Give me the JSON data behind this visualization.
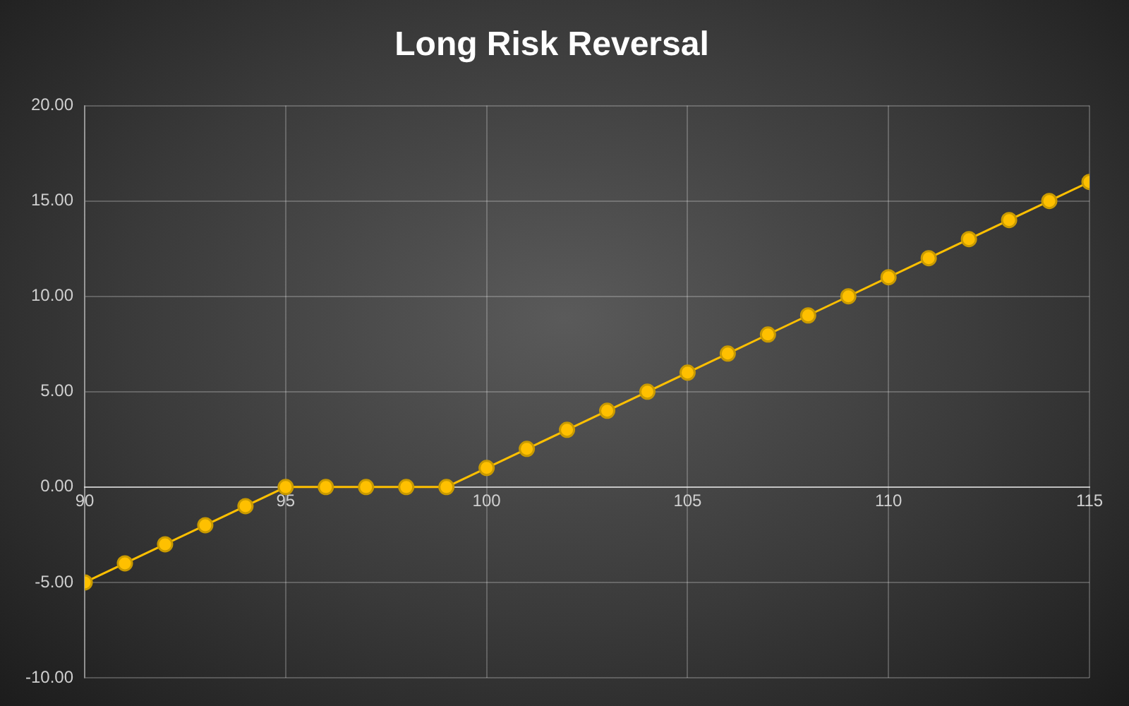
{
  "chart_data": {
    "type": "line",
    "title": "Long Risk Reversal",
    "x": [
      90,
      91,
      92,
      93,
      94,
      95,
      96,
      97,
      98,
      99,
      100,
      101,
      102,
      103,
      104,
      105,
      106,
      107,
      108,
      109,
      110,
      111,
      112,
      113,
      114,
      115
    ],
    "series": [
      {
        "color": "#ffc000",
        "values": [
          -5,
          -4,
          -3,
          -2,
          -1,
          0,
          0,
          0,
          0,
          0,
          1,
          2,
          3,
          4,
          5,
          6,
          7,
          8,
          9,
          10,
          11,
          12,
          13,
          14,
          15,
          16
        ]
      }
    ],
    "xlim": [
      90,
      115
    ],
    "xticks": [
      90,
      95,
      100,
      105,
      110,
      115
    ],
    "ylim": [
      -10,
      20
    ],
    "yticks": [
      {
        "value": -10,
        "label": "-10.00"
      },
      {
        "value": -5,
        "label": "-5.00"
      },
      {
        "value": 0,
        "label": "0.00"
      },
      {
        "value": 5,
        "label": "5.00"
      },
      {
        "value": 10,
        "label": "10.00"
      },
      {
        "value": 15,
        "label": "15.00"
      },
      {
        "value": 20,
        "label": "20.00"
      }
    ],
    "grid": true,
    "marker": "circle",
    "line_style": "solid",
    "legend": false
  }
}
